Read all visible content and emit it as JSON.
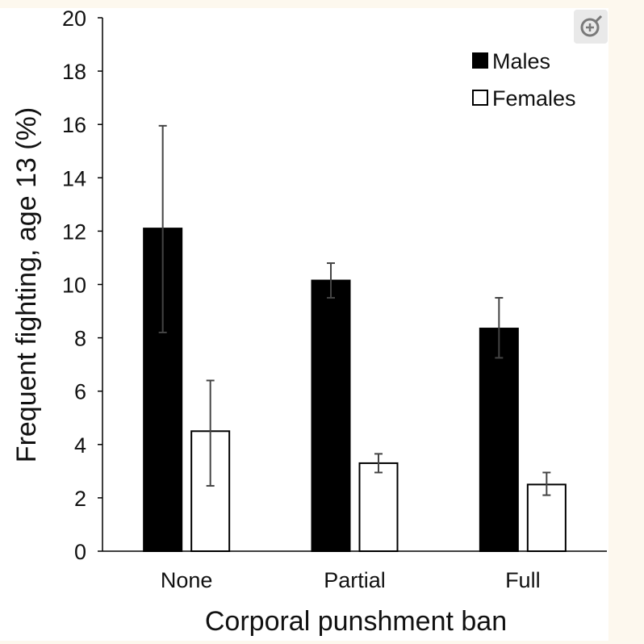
{
  "chart_data": {
    "type": "bar",
    "title": "",
    "xlabel": "Corporal punshment ban",
    "ylabel": "Frequent fighting, age 13 (%)",
    "categories": [
      "None",
      "Partial",
      "Full"
    ],
    "ylim": [
      0,
      20
    ],
    "yticks": [
      "0",
      "2",
      "4",
      "6",
      "8",
      "10",
      "12",
      "14",
      "16",
      "18",
      "20"
    ],
    "legend_position": "top-right",
    "series": [
      {
        "name": "Males",
        "color": "#000000",
        "values": [
          12.1,
          10.15,
          8.35
        ],
        "error_low": [
          8.2,
          9.5,
          7.25
        ],
        "error_high": [
          15.95,
          10.8,
          9.5
        ]
      },
      {
        "name": "Females",
        "color": "#ffffff",
        "values": [
          4.5,
          3.3,
          2.5
        ],
        "error_low": [
          2.45,
          2.95,
          2.1
        ],
        "error_high": [
          6.4,
          3.65,
          2.95
        ]
      }
    ]
  },
  "toolbar": {
    "zoom_icon": "zoom-in-icon"
  }
}
